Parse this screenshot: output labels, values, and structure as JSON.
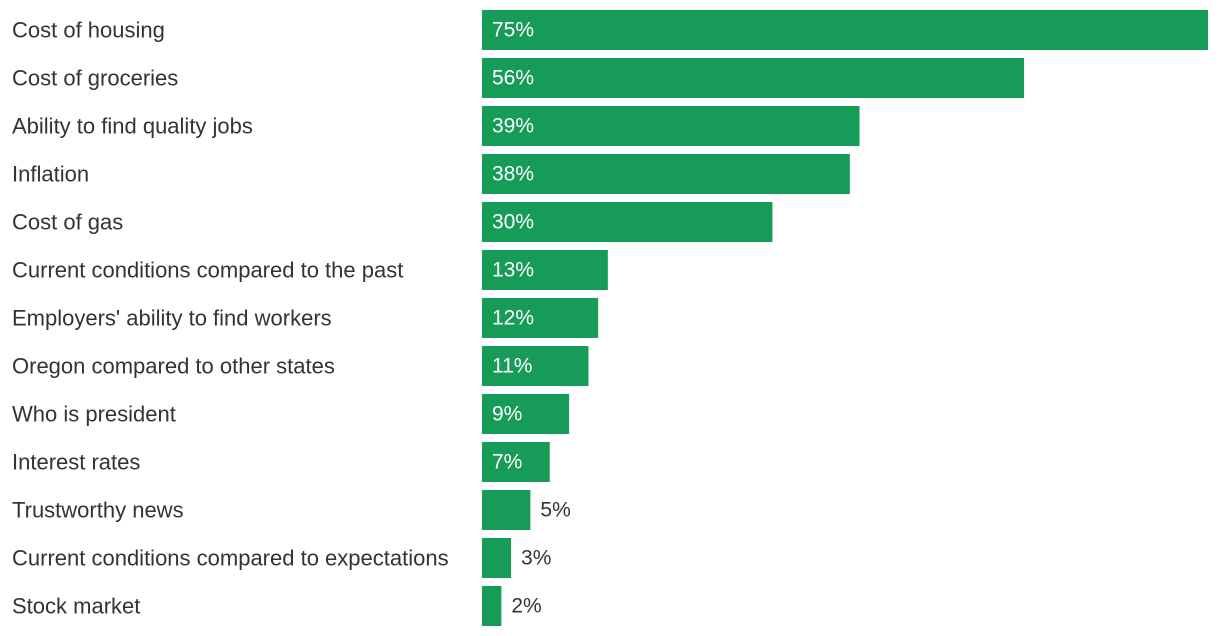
{
  "chart_data": {
    "type": "bar",
    "orientation": "horizontal",
    "categories": [
      "Cost of housing",
      "Cost of groceries",
      "Ability to find quality jobs",
      "Inflation",
      "Cost of gas",
      "Current conditions compared to the past",
      "Employers' ability to find workers",
      "Oregon compared to other states",
      "Who is president",
      "Interest rates",
      "Trustworthy news",
      "Current conditions compared to expectations",
      "Stock market"
    ],
    "values": [
      75,
      56,
      39,
      38,
      30,
      13,
      12,
      11,
      9,
      7,
      5,
      3,
      2
    ],
    "value_labels": [
      "75%",
      "56%",
      "39%",
      "38%",
      "30%",
      "13%",
      "12%",
      "11%",
      "9%",
      "7%",
      "5%",
      "3%",
      "2%"
    ],
    "xlim": [
      0,
      75
    ],
    "grid": false,
    "legend": "none",
    "bar_color": "#179b58",
    "label_color": "#333333",
    "inside_label_color": "#ffffff"
  }
}
